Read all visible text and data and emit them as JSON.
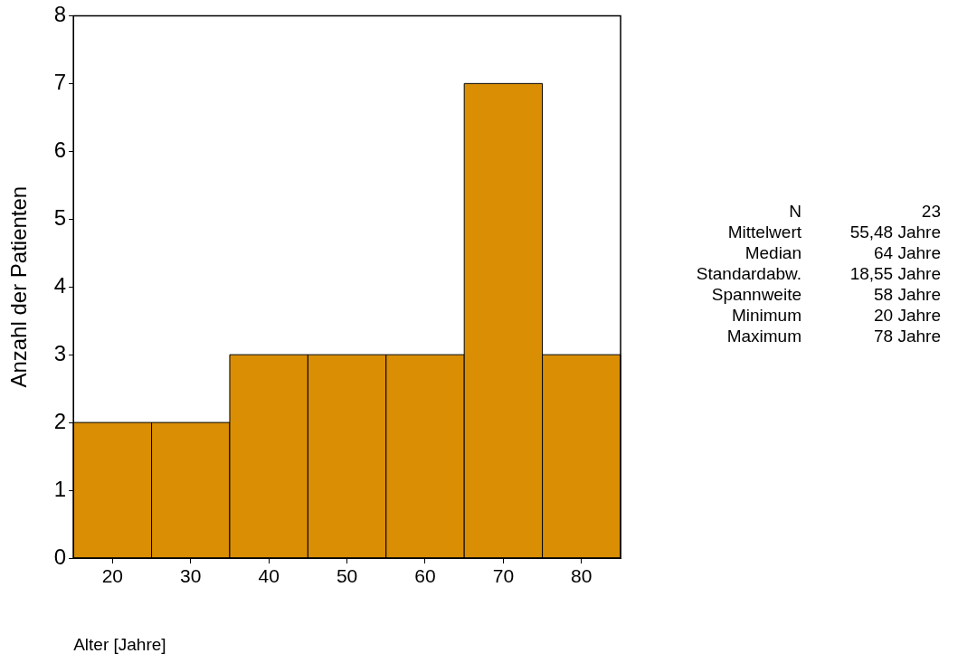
{
  "chart_data": {
    "type": "histogram",
    "xlabel": "Alter [Jahre]",
    "ylabel": "Anzahl der Patienten",
    "bins": [
      15,
      25,
      35,
      45,
      55,
      65,
      75,
      85
    ],
    "values": [
      2,
      2,
      3,
      3,
      3,
      7,
      3
    ],
    "color": "#d98e04",
    "xlim": [
      15,
      85
    ],
    "xticks": [
      20,
      30,
      40,
      50,
      60,
      70,
      80
    ],
    "ylim": [
      0,
      8
    ],
    "yticks": [
      0,
      1,
      2,
      3,
      4,
      5,
      6,
      7,
      8
    ],
    "grid": false,
    "legend": false,
    "annotations": [
      "N",
      "23",
      "Mittelwert",
      "55,48 Jahre",
      "Median",
      "64 Jahre",
      "Standardabw.",
      "18,55 Jahre",
      "Spannweite",
      "58 Jahre",
      "Minimum",
      "20 Jahre",
      "Maximum",
      "78 Jahre"
    ]
  }
}
